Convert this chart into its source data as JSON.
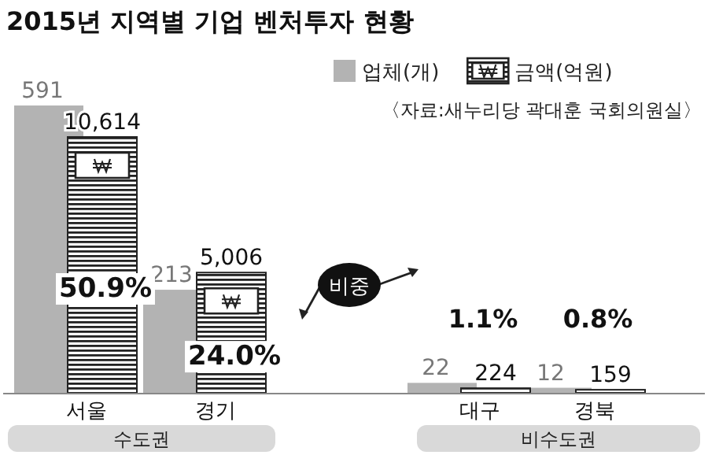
{
  "chart_data": {
    "type": "bar",
    "title": "2015년 지역별 기업 벤처투자 현황",
    "categories": [
      "서울",
      "경기",
      "대구",
      "경북"
    ],
    "series": [
      {
        "name": "업체(개)",
        "color": "#b3b3b3",
        "values": [
          591,
          213,
          22,
          12
        ],
        "value_labels": [
          "591",
          "213",
          "22",
          "12"
        ]
      },
      {
        "name": "금액(억원)",
        "color": "#222222",
        "axis": "y2",
        "values": [
          10614,
          5006,
          224,
          159
        ],
        "value_labels": [
          "10,614",
          "5,006",
          "224",
          "159"
        ]
      }
    ],
    "legend": "top right",
    "annotations": [
      "〈자료:새누리당 곽대훈 국회의원실〉",
      "비중",
      "수도권",
      "비수도권",
      "50.9%",
      "24.0%",
      "1.1%",
      "0.8%"
    ]
  }
}
